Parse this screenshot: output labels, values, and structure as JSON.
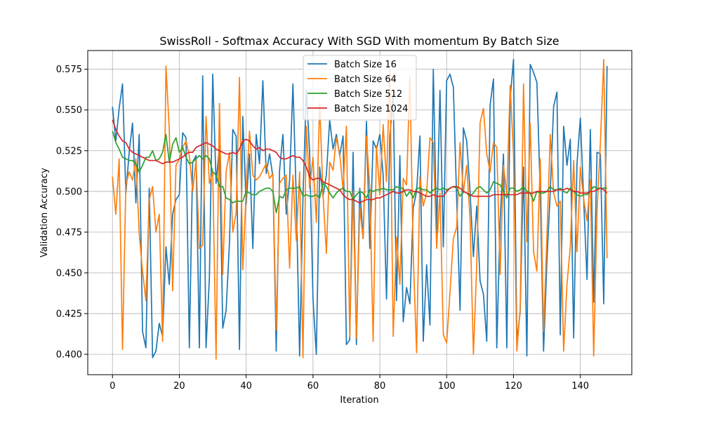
{
  "chart_data": {
    "type": "line",
    "title": "SwissRoll - Softmax Accuracy With SGD With momentum By Batch Size",
    "xlabel": "Iteration",
    "ylabel": "Validation Accuracy",
    "xlim": [
      -7.4,
      155.4
    ],
    "ylim": [
      0.3875,
      0.5865
    ],
    "xticks": [
      0,
      20,
      40,
      60,
      80,
      100,
      120,
      140
    ],
    "yticks": [
      0.4,
      0.425,
      0.45,
      0.475,
      0.5,
      0.525,
      0.55,
      0.575
    ],
    "ytick_labels": [
      "0.400",
      "0.425",
      "0.450",
      "0.475",
      "0.500",
      "0.525",
      "0.550",
      "0.575"
    ],
    "grid": true,
    "legend_position": "top-center",
    "series": [
      {
        "name": "Batch Size 16",
        "color": "#1f77b4",
        "values": [
          0.552,
          0.531,
          0.551,
          0.566,
          0.499,
          0.524,
          0.542,
          0.493,
          0.535,
          0.414,
          0.404,
          0.502,
          0.398,
          0.402,
          0.419,
          0.411,
          0.466,
          0.443,
          0.486,
          0.495,
          0.498,
          0.536,
          0.533,
          0.404,
          0.518,
          0.522,
          0.404,
          0.571,
          0.404,
          0.447,
          0.572,
          0.505,
          0.528,
          0.416,
          0.427,
          0.468,
          0.538,
          0.534,
          0.403,
          0.546,
          0.492,
          0.523,
          0.465,
          0.535,
          0.517,
          0.568,
          0.511,
          0.523,
          0.509,
          0.402,
          0.513,
          0.535,
          0.486,
          0.507,
          0.566,
          0.496,
          0.399,
          0.496,
          0.562,
          0.524,
          0.434,
          0.4,
          0.515,
          0.497,
          0.51,
          0.544,
          0.526,
          0.535,
          0.522,
          0.534,
          0.406,
          0.409,
          0.524,
          0.406,
          0.502,
          0.471,
          0.543,
          0.465,
          0.531,
          0.526,
          0.535,
          0.51,
          0.434,
          0.534,
          0.559,
          0.433,
          0.522,
          0.42,
          0.441,
          0.431,
          0.49,
          0.5,
          0.534,
          0.408,
          0.455,
          0.418,
          0.575,
          0.474,
          0.562,
          0.466,
          0.568,
          0.572,
          0.564,
          0.495,
          0.427,
          0.539,
          0.531,
          0.5,
          0.46,
          0.491,
          0.445,
          0.437,
          0.408,
          0.553,
          0.569,
          0.404,
          0.482,
          0.523,
          0.404,
          0.557,
          0.581,
          0.408,
          0.426,
          0.515,
          0.399,
          0.578,
          0.573,
          0.567,
          0.5,
          0.402,
          0.457,
          0.5,
          0.552,
          0.561,
          0.412,
          0.54,
          0.516,
          0.532,
          0.41,
          0.517,
          0.545,
          0.495,
          0.446,
          0.538,
          0.432,
          0.524,
          0.523,
          0.431,
          0.577
        ]
      },
      {
        "name": "Batch Size 64",
        "color": "#ff7f0e",
        "values": [
          0.509,
          0.486,
          0.52,
          0.403,
          0.504,
          0.512,
          0.507,
          0.52,
          0.474,
          0.451,
          0.433,
          0.495,
          0.503,
          0.475,
          0.486,
          0.408,
          0.577,
          0.538,
          0.439,
          0.516,
          0.52,
          0.527,
          0.531,
          0.522,
          0.5,
          0.519,
          0.465,
          0.467,
          0.546,
          0.505,
          0.512,
          0.397,
          0.554,
          0.449,
          0.512,
          0.524,
          0.475,
          0.487,
          0.57,
          0.452,
          0.5,
          0.537,
          0.51,
          0.507,
          0.509,
          0.513,
          0.517,
          0.508,
          0.511,
          0.415,
          0.505,
          0.508,
          0.51,
          0.453,
          0.51,
          0.47,
          0.512,
          0.398,
          0.54,
          0.502,
          0.521,
          0.481,
          0.554,
          0.498,
          0.462,
          0.518,
          0.513,
          0.533,
          0.523,
          0.501,
          0.54,
          0.411,
          0.5,
          0.41,
          0.49,
          0.471,
          0.534,
          0.502,
          0.408,
          0.528,
          0.498,
          0.541,
          0.506,
          0.575,
          0.411,
          0.472,
          0.443,
          0.508,
          0.504,
          0.57,
          0.461,
          0.401,
          0.509,
          0.491,
          0.499,
          0.533,
          0.53,
          0.465,
          0.499,
          0.412,
          0.407,
          0.438,
          0.471,
          0.478,
          0.53,
          0.499,
          0.516,
          0.483,
          0.4,
          0.455,
          0.542,
          0.551,
          0.523,
          0.512,
          0.53,
          0.527,
          0.449,
          0.516,
          0.498,
          0.565,
          0.523,
          0.402,
          0.428,
          0.566,
          0.469,
          0.542,
          0.463,
          0.451,
          0.52,
          0.414,
          0.472,
          0.535,
          0.499,
          0.491,
          0.494,
          0.402,
          0.443,
          0.466,
          0.519,
          0.463,
          0.515,
          0.495,
          0.482,
          0.507,
          0.399,
          0.488,
          0.53,
          0.581,
          0.459
        ]
      },
      {
        "name": "Batch Size 512",
        "color": "#2ca02c",
        "values": [
          0.537,
          0.53,
          0.526,
          0.521,
          0.52,
          0.519,
          0.519,
          0.517,
          0.512,
          0.516,
          0.521,
          0.521,
          0.525,
          0.519,
          0.52,
          0.524,
          0.535,
          0.518,
          0.529,
          0.533,
          0.524,
          0.527,
          0.521,
          0.517,
          0.518,
          0.52,
          0.522,
          0.52,
          0.522,
          0.52,
          0.512,
          0.51,
          0.503,
          0.503,
          0.496,
          0.495,
          0.493,
          0.494,
          0.494,
          0.494,
          0.5,
          0.499,
          0.498,
          0.498,
          0.5,
          0.501,
          0.502,
          0.502,
          0.5,
          0.487,
          0.497,
          0.496,
          0.501,
          0.502,
          0.502,
          0.502,
          0.503,
          0.497,
          0.498,
          0.497,
          0.497,
          0.498,
          0.496,
          0.505,
          0.503,
          0.499,
          0.496,
          0.499,
          0.501,
          0.502,
          0.5,
          0.5,
          0.495,
          0.498,
          0.5,
          0.499,
          0.496,
          0.501,
          0.5,
          0.501,
          0.501,
          0.502,
          0.501,
          0.501,
          0.501,
          0.503,
          0.502,
          0.502,
          0.497,
          0.5,
          0.496,
          0.502,
          0.502,
          0.501,
          0.501,
          0.499,
          0.501,
          0.502,
          0.501,
          0.502,
          0.501,
          0.502,
          0.503,
          0.502,
          0.497,
          0.5,
          0.499,
          0.497,
          0.499,
          0.502,
          0.503,
          0.501,
          0.499,
          0.501,
          0.506,
          0.505,
          0.504,
          0.5,
          0.496,
          0.502,
          0.502,
          0.5,
          0.501,
          0.503,
          0.5,
          0.499,
          0.494,
          0.5,
          0.499,
          0.499,
          0.5,
          0.503,
          0.501,
          0.501,
          0.502,
          0.5,
          0.499,
          0.502,
          0.5,
          0.498,
          0.497,
          0.498,
          0.498,
          0.5,
          0.503,
          0.502,
          0.502,
          0.502,
          0.502
        ]
      },
      {
        "name": "Batch Size 1024",
        "color": "#d62728",
        "values": [
          0.544,
          0.538,
          0.534,
          0.531,
          0.53,
          0.526,
          0.524,
          0.523,
          0.522,
          0.521,
          0.52,
          0.519,
          0.519,
          0.519,
          0.518,
          0.517,
          0.518,
          0.518,
          0.518,
          0.519,
          0.52,
          0.521,
          0.523,
          0.524,
          0.524,
          0.527,
          0.528,
          0.529,
          0.53,
          0.529,
          0.528,
          0.526,
          0.525,
          0.524,
          0.523,
          0.523,
          0.524,
          0.523,
          0.526,
          0.531,
          0.532,
          0.531,
          0.528,
          0.526,
          0.527,
          0.525,
          0.526,
          0.526,
          0.525,
          0.524,
          0.521,
          0.52,
          0.52,
          0.521,
          0.522,
          0.521,
          0.521,
          0.519,
          0.515,
          0.509,
          0.507,
          0.508,
          0.508,
          0.506,
          0.505,
          0.504,
          0.503,
          0.502,
          0.501,
          0.498,
          0.496,
          0.495,
          0.495,
          0.494,
          0.493,
          0.494,
          0.495,
          0.495,
          0.495,
          0.496,
          0.496,
          0.497,
          0.498,
          0.499,
          0.5,
          0.499,
          0.499,
          0.5,
          0.501,
          0.501,
          0.5,
          0.5,
          0.499,
          0.498,
          0.497,
          0.497,
          0.498,
          0.497,
          0.497,
          0.497,
          0.5,
          0.502,
          0.503,
          0.503,
          0.502,
          0.5,
          0.499,
          0.498,
          0.497,
          0.497,
          0.497,
          0.497,
          0.497,
          0.497,
          0.498,
          0.498,
          0.498,
          0.498,
          0.498,
          0.498,
          0.498,
          0.498,
          0.499,
          0.499,
          0.499,
          0.499,
          0.499,
          0.5,
          0.5,
          0.5,
          0.5,
          0.5,
          0.5,
          0.501,
          0.501,
          0.501,
          0.502,
          0.501,
          0.5,
          0.5,
          0.499,
          0.499,
          0.499,
          0.5,
          0.5,
          0.501,
          0.502,
          0.501,
          0.499
        ]
      }
    ]
  }
}
